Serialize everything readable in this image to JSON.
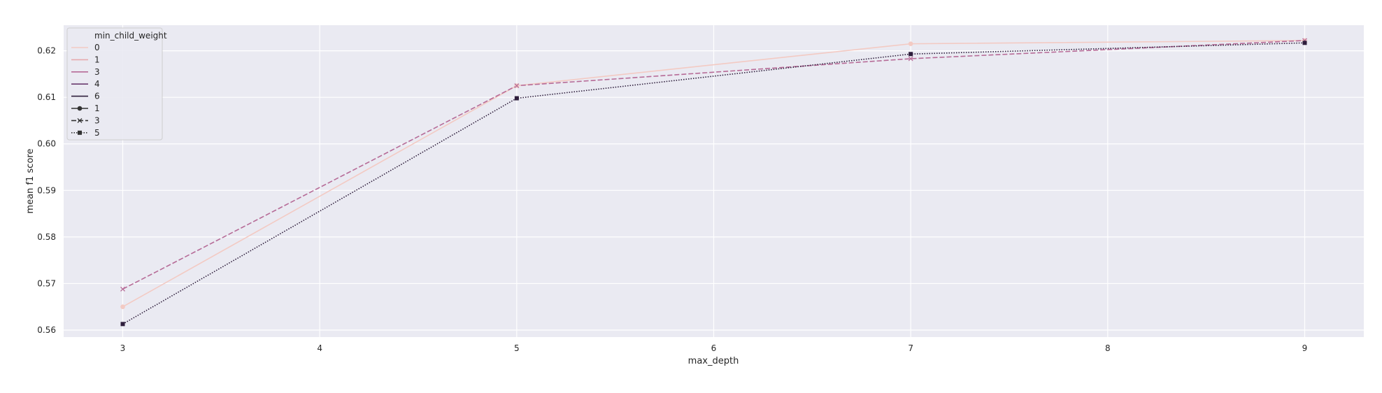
{
  "chart_data": {
    "type": "line",
    "xlabel": "max_depth",
    "ylabel": "mean f1 score",
    "x_ticks": [
      3,
      4,
      5,
      6,
      7,
      8,
      9
    ],
    "y_ticks": [
      0.56,
      0.57,
      0.58,
      0.59,
      0.6,
      0.61,
      0.62
    ],
    "y_tick_labels": [
      "0.56",
      "0.57",
      "0.58",
      "0.59",
      "0.60",
      "0.61",
      "0.62"
    ],
    "xlim": [
      2.7,
      9.3
    ],
    "ylim": [
      0.5585,
      0.6255
    ],
    "grid": true,
    "background": "#eaeaf2",
    "legend": {
      "placement": "top-left",
      "hue_title": "min_child_weight",
      "hue_entries": [
        {
          "label": "0",
          "color": "#f3cac3"
        },
        {
          "label": "1",
          "color": "#e6a9ae"
        },
        {
          "label": "3",
          "color": "#b66b97"
        },
        {
          "label": "4",
          "color": "#6a3b6f"
        },
        {
          "label": "6",
          "color": "#2e1e3c"
        }
      ],
      "style_entries": [
        {
          "label": "1",
          "dash": "solid",
          "marker": "circle"
        },
        {
          "label": "3",
          "dash": "dashed",
          "marker": "x"
        },
        {
          "label": "5",
          "dash": "dotted",
          "marker": "square"
        }
      ]
    },
    "series": [
      {
        "color": "#f3cac3",
        "dash": "solid",
        "marker": "circle",
        "x": [
          3,
          5,
          7,
          9
        ],
        "y": [
          0.565,
          0.6125,
          0.6215,
          0.6222
        ]
      },
      {
        "color": "#b66b97",
        "dash": "dashed",
        "marker": "x",
        "x": [
          3,
          5,
          7,
          9
        ],
        "y": [
          0.5688,
          0.6125,
          0.6183,
          0.6222
        ]
      },
      {
        "color": "#2e1e3c",
        "dash": "dotted",
        "marker": "square",
        "x": [
          3,
          5,
          7,
          9
        ],
        "y": [
          0.5613,
          0.6098,
          0.6193,
          0.6217
        ]
      }
    ]
  }
}
